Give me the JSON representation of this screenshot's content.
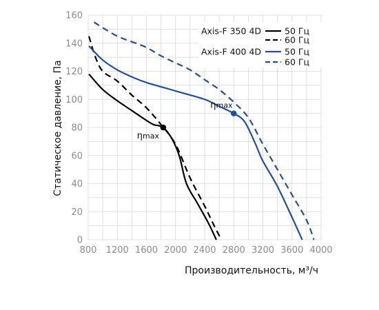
{
  "chart_data": {
    "type": "line",
    "xlabel": "Производительность, м³/ч",
    "ylabel": "Статическое давление, Па",
    "xlim": [
      800,
      4000
    ],
    "ylim": [
      0,
      160
    ],
    "x_ticks": [
      800,
      1200,
      1600,
      2000,
      2400,
      2800,
      3200,
      3600,
      4000
    ],
    "y_ticks": [
      0,
      20,
      40,
      60,
      80,
      100,
      120,
      140,
      160
    ],
    "grid": true,
    "legend_position": "top-right",
    "models": [
      {
        "name": "Axis-F 350 4D",
        "color": "#000000"
      },
      {
        "name": "Axis-F 400 4D",
        "color": "#1f4f9e"
      }
    ],
    "series": [
      {
        "name": "50 Гц",
        "model": "Axis-F 350 4D",
        "style": "solid",
        "color": "#000000",
        "points": [
          [
            810,
            118
          ],
          [
            1000,
            107
          ],
          [
            1200,
            99
          ],
          [
            1400,
            92
          ],
          [
            1600,
            85
          ],
          [
            1700,
            82
          ],
          [
            1830,
            80
          ],
          [
            1950,
            72
          ],
          [
            2050,
            60
          ],
          [
            2150,
            40
          ],
          [
            2300,
            26
          ],
          [
            2450,
            12
          ],
          [
            2560,
            0
          ]
        ]
      },
      {
        "name": "60 Гц",
        "model": "Axis-F 350 4D",
        "style": "dashed",
        "color": "#000000",
        "points": [
          [
            810,
            145
          ],
          [
            900,
            130
          ],
          [
            1000,
            120
          ],
          [
            1200,
            113
          ],
          [
            1400,
            103
          ],
          [
            1600,
            94
          ],
          [
            1800,
            82
          ],
          [
            2000,
            68
          ],
          [
            2200,
            44
          ],
          [
            2400,
            24
          ],
          [
            2530,
            10
          ],
          [
            2630,
            0
          ]
        ]
      },
      {
        "name": "50 Гц",
        "model": "Axis-F 400 4D",
        "style": "solid",
        "color": "#1f4f9e",
        "points": [
          [
            810,
            138
          ],
          [
            1000,
            128
          ],
          [
            1200,
            121
          ],
          [
            1400,
            116
          ],
          [
            1600,
            112
          ],
          [
            2000,
            106
          ],
          [
            2400,
            100
          ],
          [
            2600,
            95
          ],
          [
            2800,
            90
          ],
          [
            2950,
            84
          ],
          [
            3100,
            68
          ],
          [
            3200,
            56
          ],
          [
            3400,
            38
          ],
          [
            3600,
            16
          ],
          [
            3740,
            0
          ]
        ]
      },
      {
        "name": "60 Гц",
        "model": "Axis-F 400 4D",
        "style": "dashed",
        "color": "#1f4f9e",
        "points": [
          [
            880,
            155
          ],
          [
            1000,
            151
          ],
          [
            1200,
            145
          ],
          [
            1400,
            141
          ],
          [
            1600,
            137
          ],
          [
            1800,
            131
          ],
          [
            2000,
            126
          ],
          [
            2200,
            121
          ],
          [
            2400,
            114
          ],
          [
            2600,
            107
          ],
          [
            2800,
            98
          ],
          [
            3000,
            87
          ],
          [
            3200,
            68
          ],
          [
            3400,
            50
          ],
          [
            3600,
            32
          ],
          [
            3800,
            14
          ],
          [
            3900,
            0
          ]
        ]
      }
    ],
    "annotations": [
      {
        "text": "ηmax",
        "x": 1830,
        "y": 80,
        "color": "#000000"
      },
      {
        "text": "ηmax",
        "x": 2800,
        "y": 90,
        "color": "#1f4f9e"
      }
    ]
  }
}
